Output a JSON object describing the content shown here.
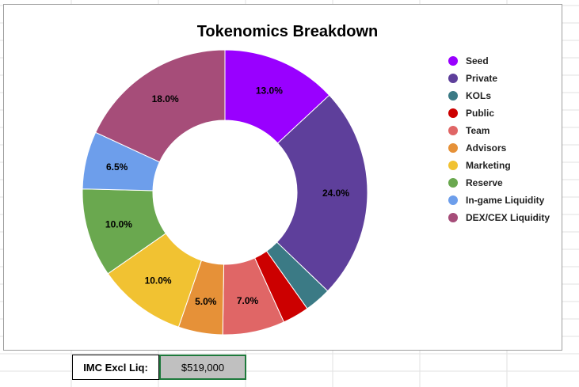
{
  "chart_data": {
    "type": "pie",
    "title": "Tokenomics Breakdown",
    "categories": [
      "Seed",
      "Private",
      "KOLs",
      "Public",
      "Team",
      "Advisors",
      "Marketing",
      "Reserve",
      "In-game Liquidity",
      "DEX/CEX Liquidity"
    ],
    "values": [
      13.0,
      24.0,
      3.0,
      3.0,
      7.0,
      5.0,
      10.0,
      10.0,
      6.5,
      18.0
    ],
    "data_labels": [
      "13.0%",
      "24.0%",
      "",
      "",
      "7.0%",
      "5.0%",
      "10.0%",
      "10.0%",
      "6.5%",
      "18.0%"
    ],
    "colors": [
      "#9900ff",
      "#5e3f9b",
      "#3b7a85",
      "#cc0000",
      "#e06666",
      "#e69138",
      "#f1c232",
      "#6aa84f",
      "#6d9eeb",
      "#a64d79"
    ],
    "hole": "donut",
    "legend_position": "right"
  },
  "summary": {
    "label": "IMC Excl Liq:",
    "value": "$519,000"
  }
}
